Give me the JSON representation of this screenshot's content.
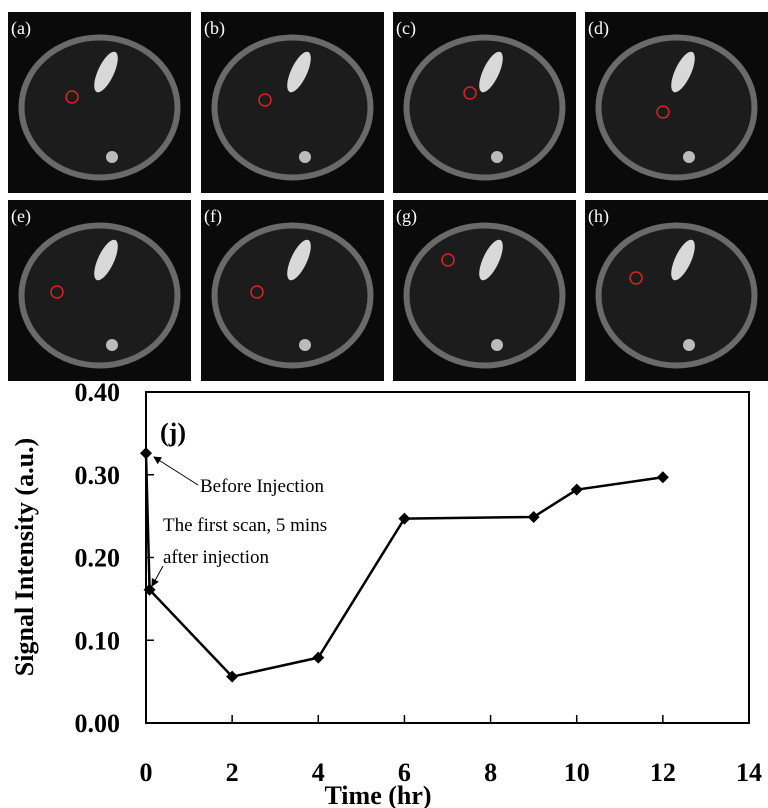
{
  "images": {
    "labels": [
      "(a)",
      "(b)",
      "(c)",
      "(d)",
      "(e)",
      "(f)",
      "(g)",
      "(h)"
    ]
  },
  "chart_data": {
    "type": "line",
    "annotation_label": "(j)",
    "annotations": [
      "Before Injection",
      "The first scan, 5 mins",
      "after injection"
    ],
    "xlabel": "Time (hr)",
    "ylabel": "Signal Intensity (a.u.)",
    "x": [
      0,
      0.083,
      2,
      4,
      6,
      9,
      10,
      12
    ],
    "values": [
      0.326,
      0.161,
      0.056,
      0.079,
      0.247,
      0.249,
      0.282,
      0.297
    ],
    "color": "#000000",
    "xlim": [
      0,
      14
    ],
    "xticks": [
      0,
      2,
      4,
      6,
      8,
      10,
      12,
      14
    ],
    "ylim": [
      0,
      0.4
    ],
    "yticks": [
      {
        "value": 0,
        "label": "0.00"
      },
      {
        "value": 0.1,
        "label": "0.10"
      },
      {
        "value": 0.2,
        "label": "0.20"
      },
      {
        "value": 0.3,
        "label": "0.30"
      },
      {
        "value": 0.4,
        "label": "0.40"
      }
    ]
  }
}
